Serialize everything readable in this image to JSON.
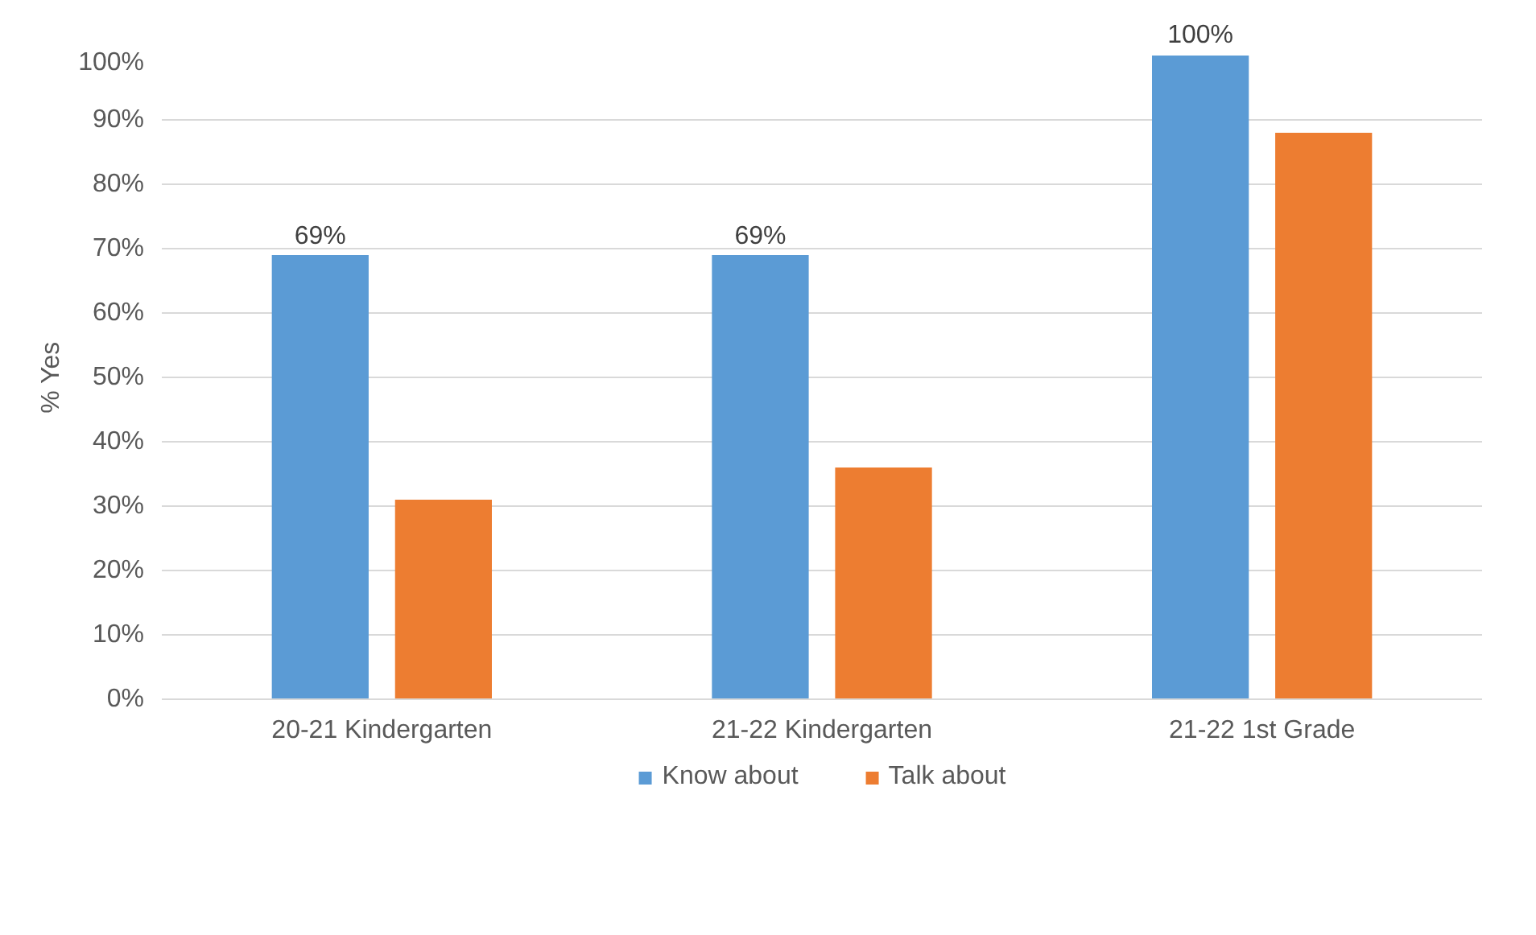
{
  "chart_data": {
    "type": "bar",
    "ylabel": "% Yes",
    "categories": [
      "20-21 Kindergarten",
      "21-22 Kindergarten",
      "21-22 1st Grade"
    ],
    "series": [
      {
        "name": "Know about",
        "color": "#5b9bd5",
        "values": [
          69,
          69,
          100
        ],
        "value_labels": [
          "69%",
          "69%",
          "100%"
        ]
      },
      {
        "name": "Talk about",
        "color": "#ed7d31",
        "values": [
          31,
          36,
          88
        ]
      }
    ],
    "ylim": [
      0,
      100
    ],
    "yticks": [
      {
        "value": 0,
        "label": "0%"
      },
      {
        "value": 10,
        "label": "10%"
      },
      {
        "value": 20,
        "label": "20%"
      },
      {
        "value": 30,
        "label": "30%"
      },
      {
        "value": 40,
        "label": "40%"
      },
      {
        "value": 50,
        "label": "50%"
      },
      {
        "value": 60,
        "label": "60%"
      },
      {
        "value": 70,
        "label": "70%"
      },
      {
        "value": 80,
        "label": "80%"
      },
      {
        "value": 90,
        "label": "90%"
      },
      {
        "value": 100,
        "label": "100%"
      }
    ],
    "grid": "y",
    "legend": "bottom"
  }
}
